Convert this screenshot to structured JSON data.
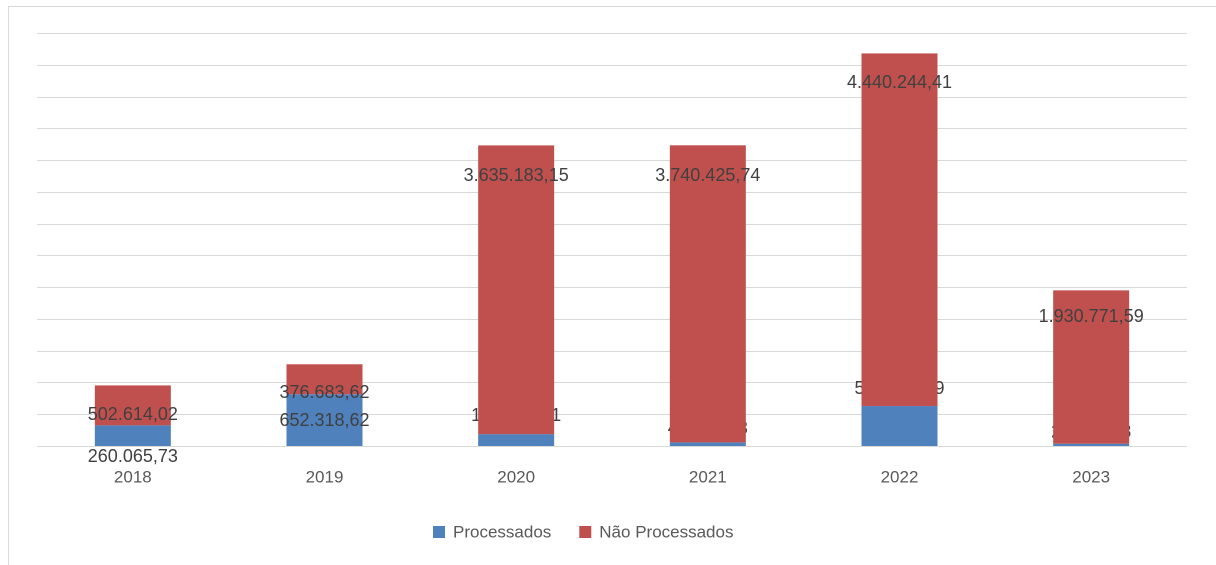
{
  "chart_data": {
    "type": "stacked_bar",
    "categories": [
      "2018",
      "2019",
      "2020",
      "2021",
      "2022",
      "2023"
    ],
    "series": [
      {
        "name": "Processados",
        "color": "#4f81bd",
        "values": [
          260065.73,
          652318.62,
          149603.51,
          45628.43,
          502763.19,
          29015.38
        ],
        "value_labels": [
          "260.065,73",
          "652.318,62",
          "149.603,51",
          "45.628,43",
          "502.763,19",
          "29.015,38"
        ]
      },
      {
        "name": "Não Processados",
        "color": "#c0504d",
        "values": [
          502614.02,
          376683.62,
          3635183.15,
          3740425.74,
          4440244.41,
          1930771.59
        ],
        "value_labels": [
          "502.614,02",
          "376.683,62",
          "3.635.183,15",
          "3.740.425,74",
          "4.440.244,41",
          "1.930.771,59"
        ]
      }
    ],
    "ylim": [
      0,
      5200000
    ],
    "yticks": [
      0,
      400000,
      800000,
      1200000,
      1600000,
      2000000,
      2400000,
      2800000,
      3200000,
      3600000,
      4000000,
      4400000,
      4800000,
      5200000
    ],
    "grid": true,
    "legend": "bottom"
  }
}
